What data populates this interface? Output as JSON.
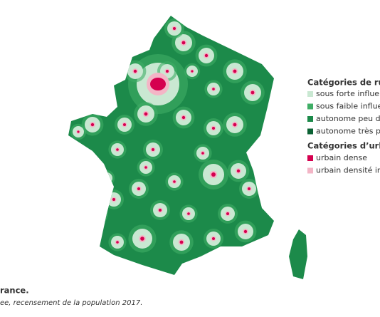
{
  "legend": {
    "rural": {
      "title": "Catégories de rur",
      "items": [
        {
          "label": "sous forte influer",
          "color": "#c9e8d2"
        },
        {
          "label": "sous faible influe",
          "color": "#3fae66"
        },
        {
          "label": "autonome peu de",
          "color": "#1c8a4a"
        },
        {
          "label": "autonome très pe",
          "color": "#0c6234"
        }
      ]
    },
    "urban": {
      "title": "Catégories d’urba",
      "items": [
        {
          "label": "urbain dense",
          "color": "#d5004f"
        },
        {
          "label": "urbain densité in",
          "color": "#f3b5c6"
        }
      ]
    }
  },
  "caption": {
    "title": "rance.",
    "source": "ee, recensement de la population 2017."
  }
}
